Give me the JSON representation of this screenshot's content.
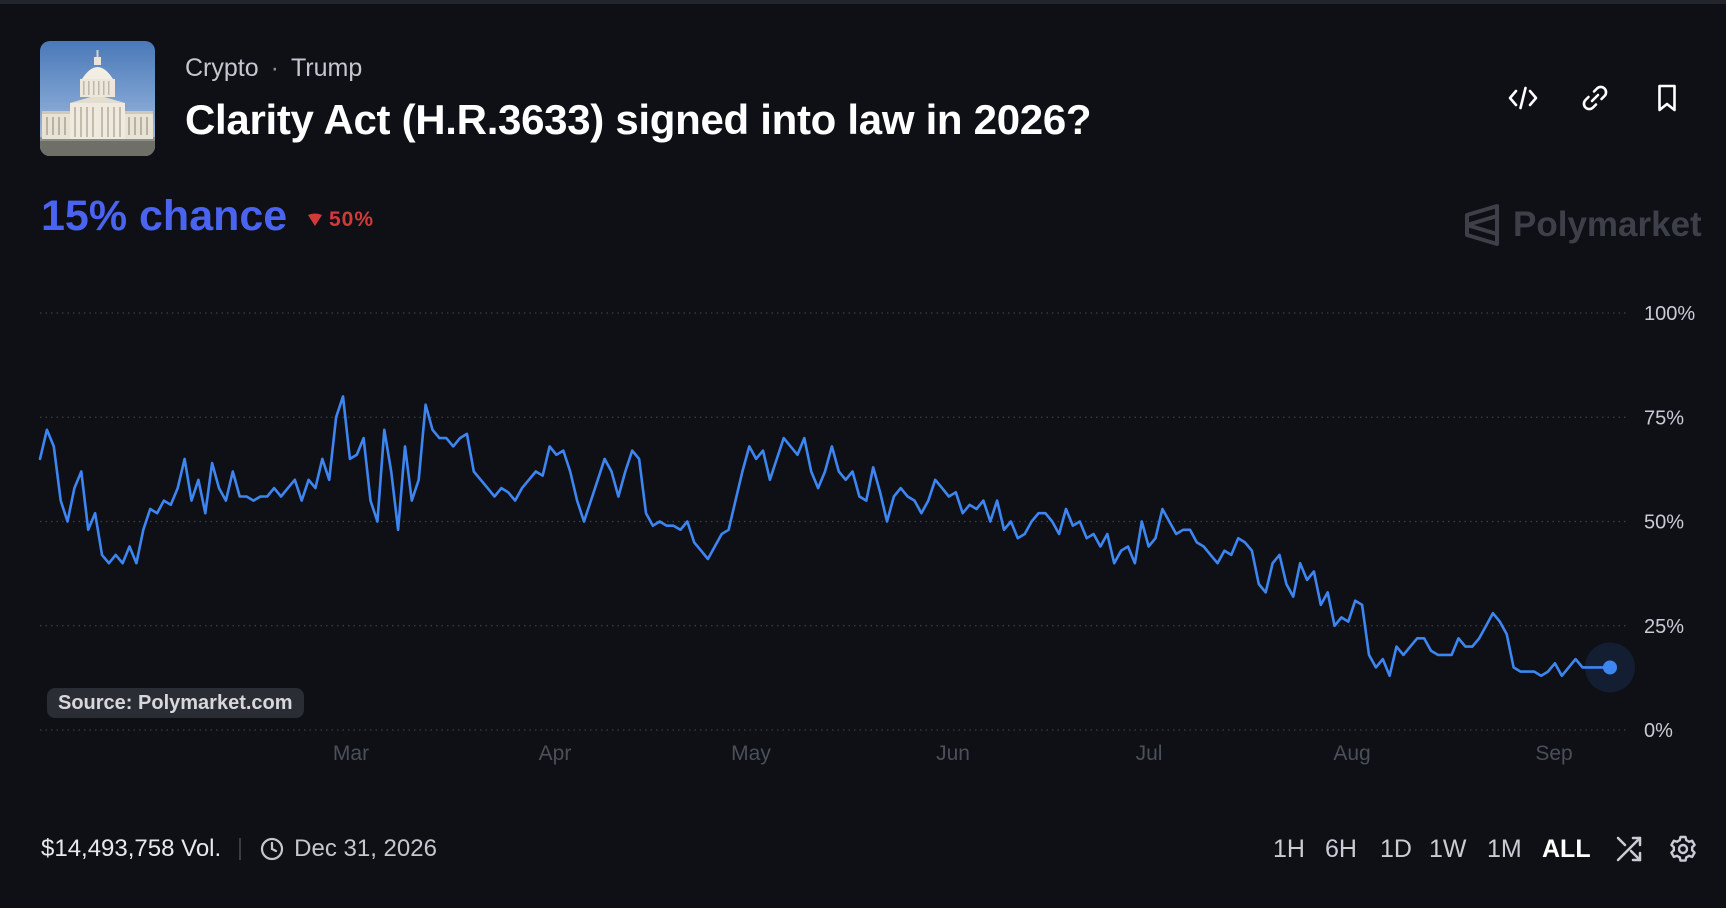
{
  "header": {
    "crumbs": [
      "Crypto",
      "Trump"
    ],
    "title": "Clarity Act (H.R.3633) signed into law in 2026?",
    "actions": [
      "embed-icon",
      "link-icon",
      "bookmark-icon"
    ]
  },
  "summary": {
    "chance": "15% chance",
    "delta": "50%",
    "delta_direction": "down",
    "brand": "Polymarket"
  },
  "source_label": "Source: Polymarket.com",
  "footer": {
    "volume": "$14,493,758 Vol.",
    "end_date": "Dec 31, 2026",
    "ranges": [
      "1H",
      "6H",
      "1D",
      "1W",
      "1M",
      "ALL"
    ],
    "active_range": "ALL"
  },
  "colors": {
    "background": "#0e1016",
    "line": "#3d86f2",
    "chance": "#4a63f0",
    "down": "#d23a3a",
    "axis_text": "#c9ccd3",
    "month_text": "#4b4f58"
  },
  "chart_data": {
    "type": "line",
    "title": "",
    "xlabel": "",
    "ylabel": "",
    "ylim": [
      0,
      100
    ],
    "y_ticks": [
      "100%",
      "75%",
      "50%",
      "25%",
      "0%"
    ],
    "x_ticks": [
      "Mar",
      "Apr",
      "May",
      "Jun",
      "Jul",
      "Aug",
      "Sep"
    ],
    "grid": "horizontal dotted",
    "series": [
      {
        "values": [
          65,
          72,
          68,
          55,
          50,
          58,
          62,
          48,
          52,
          42,
          40,
          42,
          40,
          44,
          40,
          48,
          53,
          52,
          55,
          54,
          58,
          65,
          55,
          60,
          52,
          64,
          58,
          55,
          62,
          56,
          56,
          55,
          56,
          56,
          58,
          56,
          58,
          60,
          55,
          60,
          58,
          65,
          60,
          75,
          80,
          65,
          66,
          70,
          55,
          50,
          72,
          62,
          48,
          68,
          55,
          60,
          78,
          72,
          70,
          70,
          68,
          70,
          71,
          62,
          60,
          58,
          56,
          58,
          57,
          55,
          58,
          60,
          62,
          61,
          68,
          66,
          67,
          62,
          55,
          50,
          55,
          60,
          65,
          62,
          56,
          62,
          67,
          65,
          52,
          49,
          50,
          49,
          49,
          48,
          50,
          45,
          43,
          41,
          44,
          47,
          48,
          55,
          62,
          68,
          65,
          67,
          60,
          65,
          70,
          68,
          66,
          70,
          62,
          58,
          62,
          68,
          62,
          60,
          62,
          56,
          55,
          63,
          57,
          50,
          56,
          58,
          56,
          55,
          52,
          55,
          60,
          58,
          56,
          57,
          52,
          54,
          53,
          55,
          50,
          55,
          48,
          50,
          46,
          47,
          50,
          52,
          52,
          50,
          47,
          53,
          49,
          50,
          46,
          47,
          44,
          47,
          40,
          43,
          44,
          40,
          50,
          44,
          46,
          53,
          50,
          47,
          48,
          48,
          45,
          44,
          42,
          40,
          43,
          42,
          46,
          45,
          43,
          35,
          33,
          40,
          42,
          35,
          32,
          40,
          36,
          38,
          30,
          33,
          25,
          27,
          26,
          31,
          30,
          18,
          15,
          17,
          13,
          20,
          18,
          20,
          22,
          22,
          19,
          18,
          18,
          18,
          22,
          20,
          20,
          22,
          25,
          28,
          26,
          23,
          15,
          14,
          14,
          14,
          13,
          14,
          16,
          13,
          15,
          17,
          15,
          15,
          15,
          15,
          15
        ]
      }
    ]
  }
}
